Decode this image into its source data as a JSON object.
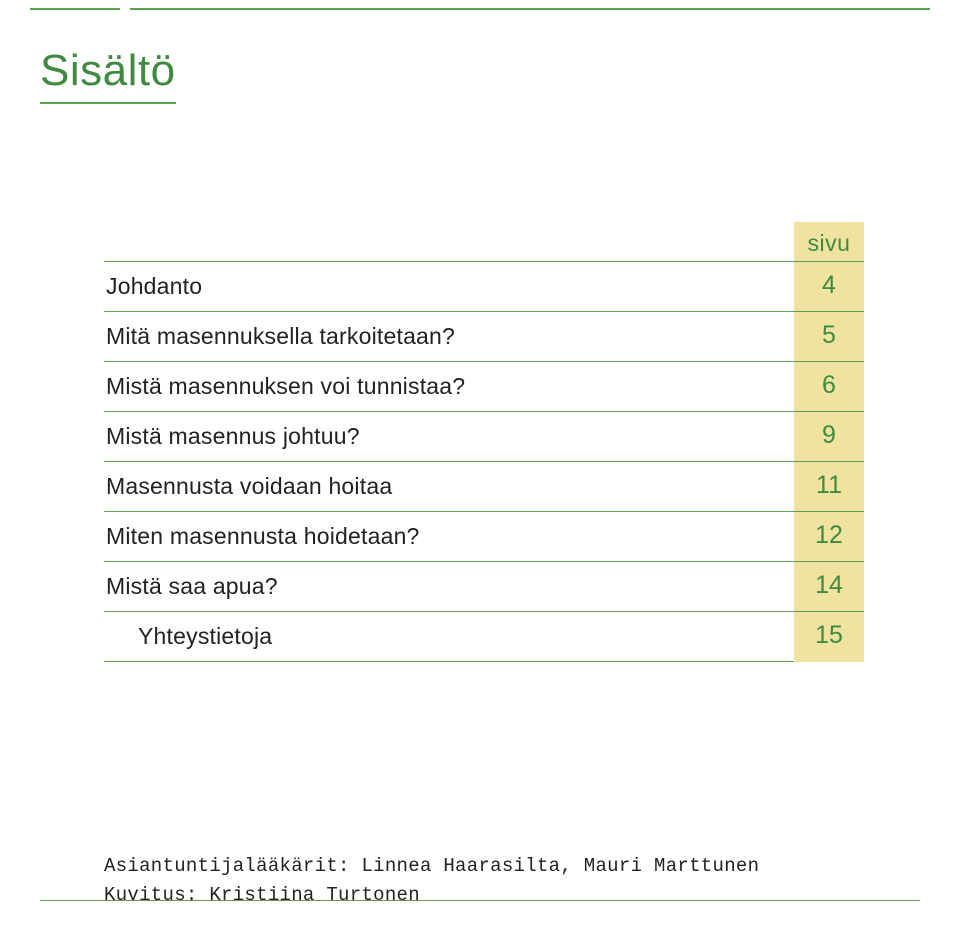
{
  "colors": {
    "green": "#3f8a3f",
    "rule_green": "#5aa04f",
    "highlight_bg": "#f0e2a0",
    "highlight_text": "#3f8a3f",
    "body_text": "#222222"
  },
  "title": "Sisältö",
  "toc": {
    "header_label": "sivu",
    "rows": [
      {
        "label": "Johdanto",
        "page": "4",
        "indent": false
      },
      {
        "label": "Mitä masennuksella tarkoitetaan?",
        "page": "5",
        "indent": false
      },
      {
        "label": "Mistä masennuksen voi tunnistaa?",
        "page": "6",
        "indent": false
      },
      {
        "label": "Mistä masennus johtuu?",
        "page": "9",
        "indent": false
      },
      {
        "label": "Masennusta voidaan hoitaa",
        "page": "11",
        "indent": false
      },
      {
        "label": "Miten masennusta hoidetaan?",
        "page": "12",
        "indent": false
      },
      {
        "label": "Mistä saa apua?",
        "page": "14",
        "indent": false
      },
      {
        "label": "Yhteystietoja",
        "page": "15",
        "indent": true
      }
    ]
  },
  "credits": {
    "line1": "Asiantuntijalääkärit: Linnea Haarasilta, Mauri Marttunen",
    "line2": "Kuvitus: Kristiina Turtonen"
  }
}
